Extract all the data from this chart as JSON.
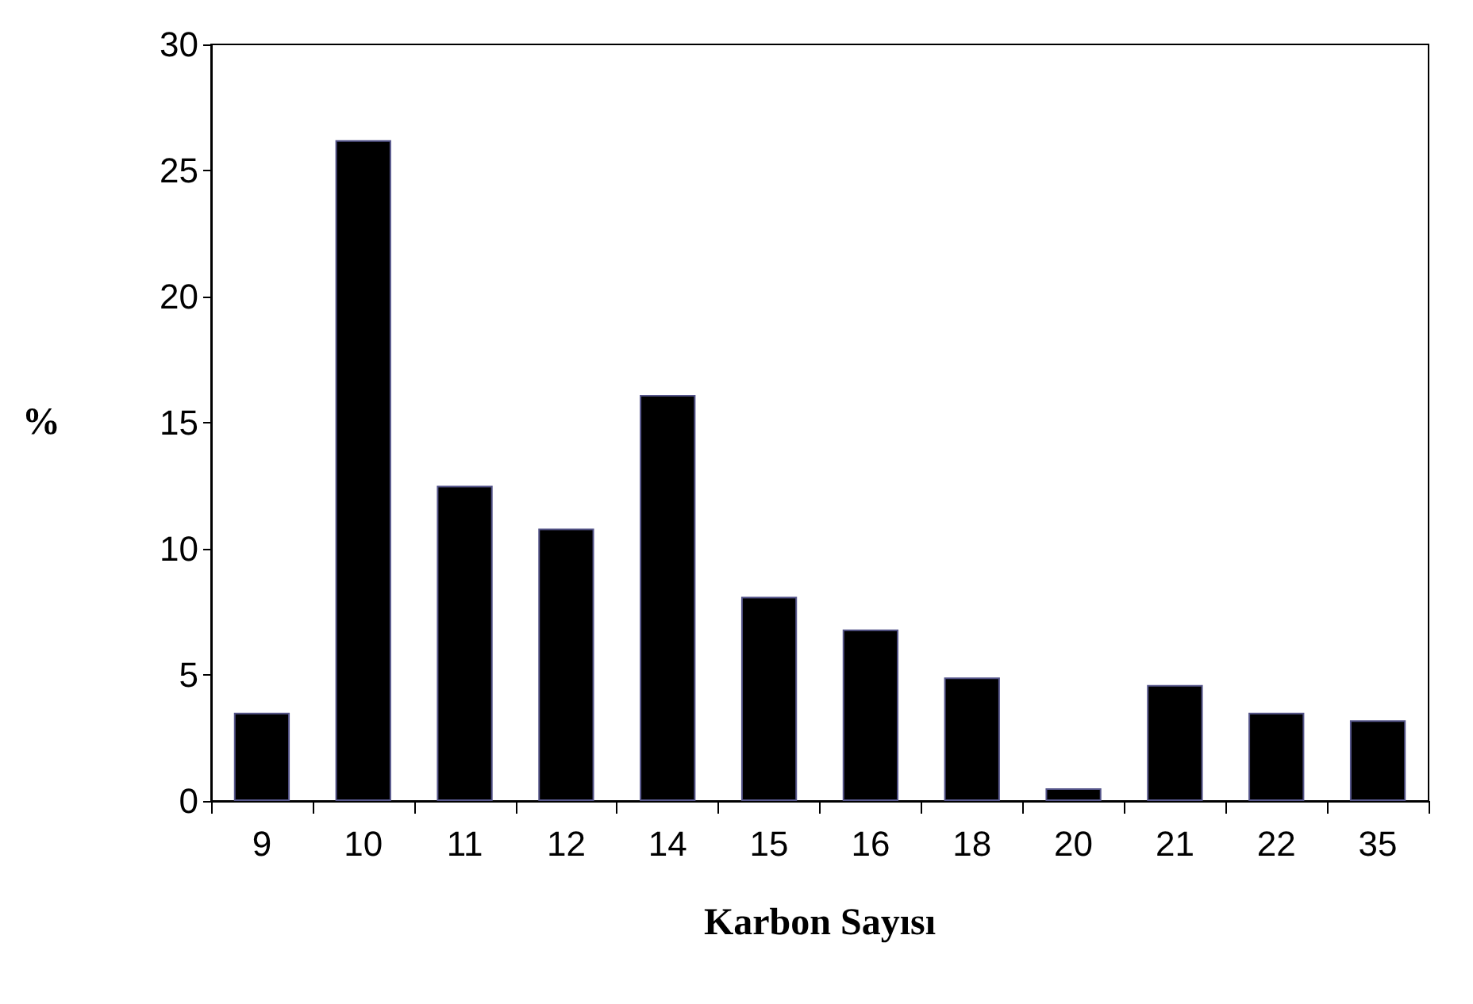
{
  "chart_data": {
    "type": "bar",
    "xlabel": "Karbon Sayısı",
    "ylabel": "%",
    "categories": [
      "9",
      "10",
      "11",
      "12",
      "14",
      "15",
      "16",
      "18",
      "20",
      "21",
      "22",
      "35"
    ],
    "values": [
      3.5,
      26.2,
      12.5,
      10.8,
      16.1,
      8.1,
      6.8,
      4.9,
      0.5,
      4.6,
      3.5,
      3.2
    ],
    "color": "#000000",
    "ylim": [
      0,
      30
    ],
    "yticks": [
      0,
      5,
      10,
      15,
      20,
      25,
      30
    ],
    "grid": false
  }
}
